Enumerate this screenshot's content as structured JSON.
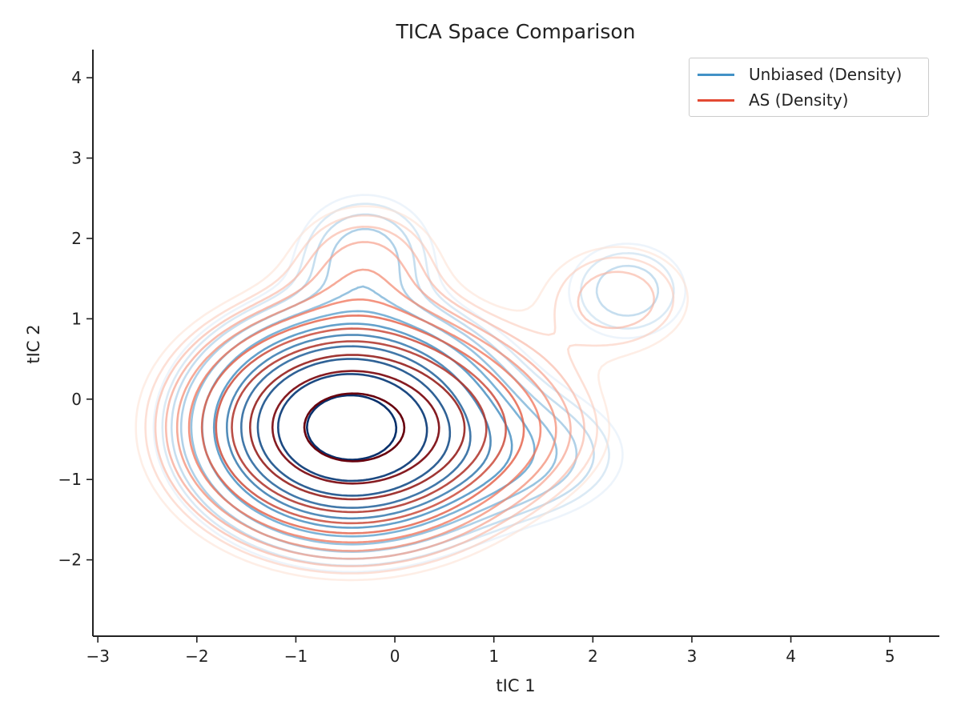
{
  "chart_data": {
    "type": "contour",
    "title": "TICA Space Comparison",
    "xlabel": "tIC 1",
    "ylabel": "tIC 2",
    "xlim": [
      -3.05,
      5.5
    ],
    "ylim": [
      -2.95,
      4.35
    ],
    "xticks": [
      -3,
      -2,
      -1,
      0,
      1,
      2,
      3,
      4,
      5
    ],
    "yticks": [
      -2,
      -1,
      0,
      1,
      2,
      3,
      4
    ],
    "xtick_labels": [
      "−3",
      "−2",
      "−1",
      "0",
      "1",
      "2",
      "3",
      "4",
      "5"
    ],
    "ytick_labels": [
      "−2",
      "−1",
      "0",
      "1",
      "2",
      "3",
      "4"
    ],
    "grid": false,
    "legend_position": "top-right",
    "series": [
      {
        "name": "Unbiased (Density)",
        "legend_color": "#4292c6",
        "levels": 12,
        "colormap": "Blues",
        "components": [
          {
            "cx": -0.45,
            "cy": -0.35,
            "sx": 0.75,
            "sy": 0.68,
            "weight": 1.0
          },
          {
            "cx": -0.3,
            "cy": 1.8,
            "sx": 0.45,
            "sy": 0.5,
            "weight": 0.09
          },
          {
            "cx": 2.35,
            "cy": 1.35,
            "sx": 0.45,
            "sy": 0.45,
            "weight": 0.07
          },
          {
            "cx": 1.2,
            "cy": -0.7,
            "sx": 0.7,
            "sy": 0.5,
            "weight": 0.1
          }
        ]
      },
      {
        "name": "AS (Density)",
        "legend_color": "#e34a33",
        "levels": 12,
        "colormap": "Reds",
        "components": [
          {
            "cx": -0.45,
            "cy": -0.35,
            "sx": 0.82,
            "sy": 0.72,
            "weight": 1.0
          },
          {
            "cx": -0.3,
            "cy": 1.7,
            "sx": 0.5,
            "sy": 0.5,
            "weight": 0.08
          },
          {
            "cx": 2.25,
            "cy": 1.25,
            "sx": 0.55,
            "sy": 0.5,
            "weight": 0.07
          },
          {
            "cx": 0.9,
            "cy": -0.4,
            "sx": 0.75,
            "sy": 0.55,
            "weight": 0.1
          }
        ]
      }
    ]
  }
}
